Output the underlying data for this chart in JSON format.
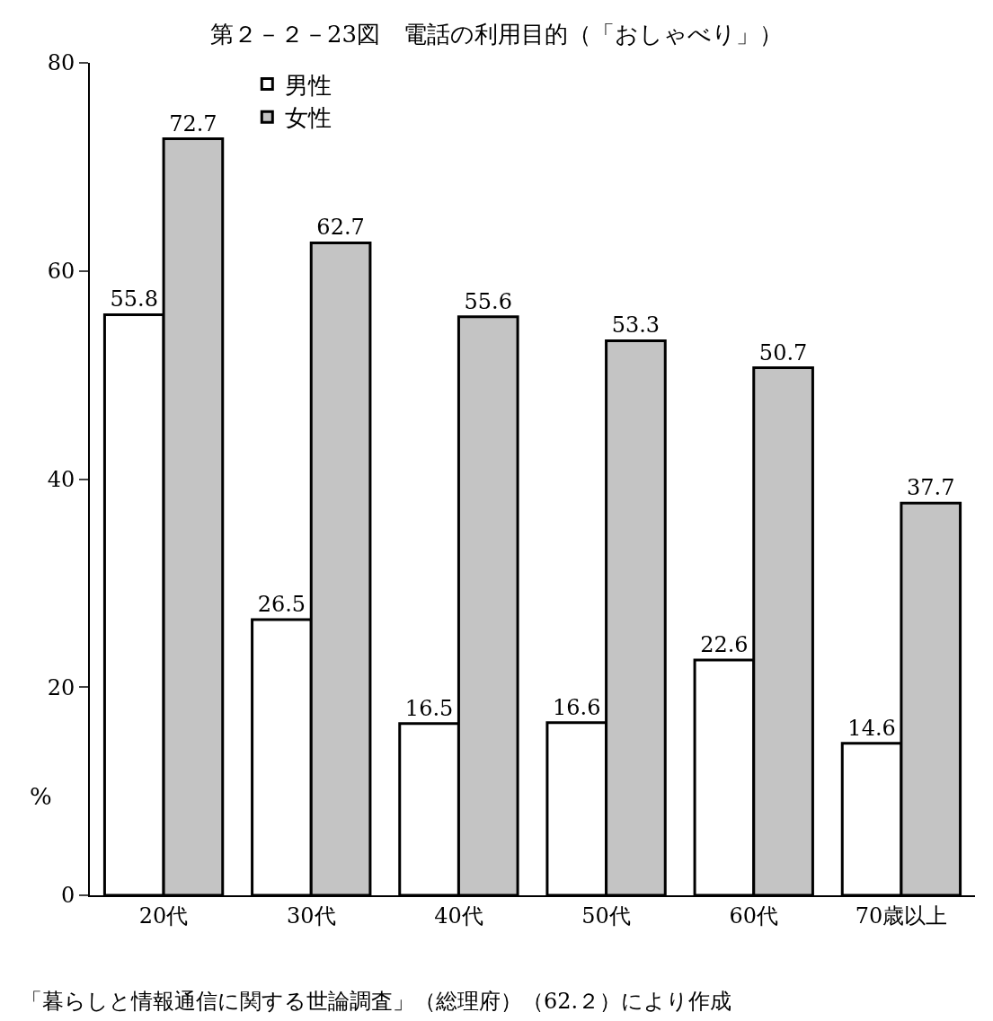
{
  "chart_data": {
    "type": "bar",
    "title": "第２－２－23図　電話の利用目的（「おしゃべり」）",
    "ylabel": "%",
    "categories": [
      "20代",
      "30代",
      "40代",
      "50代",
      "60代",
      "70歳以上"
    ],
    "series": [
      {
        "name": "男性",
        "color": "#ffffff",
        "values": [
          55.8,
          26.5,
          16.5,
          16.6,
          22.6,
          14.6
        ]
      },
      {
        "name": "女性",
        "color": "#c4c4c4",
        "values": [
          72.7,
          62.7,
          55.6,
          53.3,
          50.7,
          37.7
        ]
      }
    ],
    "ylim": [
      0,
      80
    ],
    "yticks": [
      0,
      20,
      40,
      60,
      80
    ],
    "legend": "top left",
    "data_labels": true,
    "annotations": [
      "「暮らしと情報通信に関する世論調査」（総理府）（62.２）により作成"
    ]
  }
}
